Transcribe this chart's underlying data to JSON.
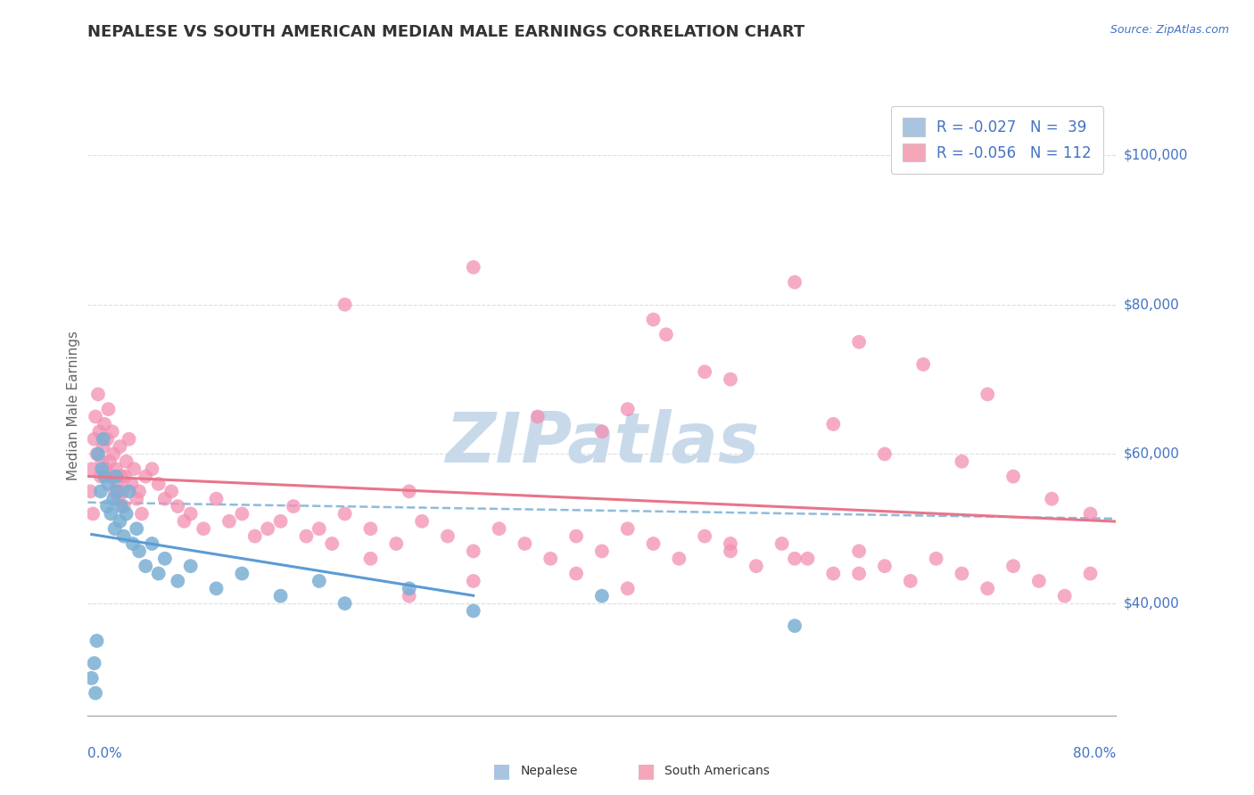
{
  "title": "NEPALESE VS SOUTH AMERICAN MEDIAN MALE EARNINGS CORRELATION CHART",
  "source_text": "Source: ZipAtlas.com",
  "ylabel": "Median Male Earnings",
  "y_tick_values": [
    40000,
    60000,
    80000,
    100000
  ],
  "xlim": [
    0.0,
    80.0
  ],
  "ylim": [
    25000,
    108000
  ],
  "nepalese_marker_color": "#7bafd4",
  "south_american_marker_color": "#f48fb1",
  "nepalese_legend_color": "#a8c4e0",
  "south_american_legend_color": "#f4a7b9",
  "title_color": "#333333",
  "axis_color": "#aaaaaa",
  "grid_color": "#dddddd",
  "right_label_color": "#4472c4",
  "watermark_color": "#c8daea",
  "trend_blue": "#5b9bd5",
  "trend_pink": "#e8758a",
  "trend_dashed": "#7bafd4",
  "nepalese_x": [
    0.3,
    0.5,
    0.6,
    0.7,
    0.8,
    1.0,
    1.1,
    1.2,
    1.3,
    1.5,
    1.6,
    1.8,
    2.0,
    2.1,
    2.2,
    2.3,
    2.5,
    2.6,
    2.8,
    3.0,
    3.2,
    3.5,
    3.8,
    4.0,
    4.5,
    5.0,
    5.5,
    6.0,
    7.0,
    8.0,
    10.0,
    12.0,
    15.0,
    18.0,
    20.0,
    25.0,
    30.0,
    40.0,
    55.0
  ],
  "nepalese_y": [
    30000,
    32000,
    28000,
    35000,
    60000,
    55000,
    58000,
    62000,
    57000,
    53000,
    56000,
    52000,
    54000,
    50000,
    57000,
    55000,
    51000,
    53000,
    49000,
    52000,
    55000,
    48000,
    50000,
    47000,
    45000,
    48000,
    44000,
    46000,
    43000,
    45000,
    42000,
    44000,
    41000,
    43000,
    40000,
    42000,
    39000,
    41000,
    37000
  ],
  "south_american_x": [
    0.2,
    0.3,
    0.4,
    0.5,
    0.6,
    0.7,
    0.8,
    0.9,
    1.0,
    1.1,
    1.2,
    1.3,
    1.4,
    1.5,
    1.6,
    1.7,
    1.8,
    1.9,
    2.0,
    2.1,
    2.2,
    2.3,
    2.4,
    2.5,
    2.6,
    2.7,
    2.8,
    2.9,
    3.0,
    3.2,
    3.4,
    3.6,
    3.8,
    4.0,
    4.2,
    4.5,
    5.0,
    5.5,
    6.0,
    6.5,
    7.0,
    7.5,
    8.0,
    9.0,
    10.0,
    11.0,
    12.0,
    13.0,
    14.0,
    15.0,
    16.0,
    17.0,
    18.0,
    19.0,
    20.0,
    22.0,
    24.0,
    26.0,
    28.0,
    30.0,
    32.0,
    34.0,
    36.0,
    38.0,
    40.0,
    42.0,
    44.0,
    46.0,
    48.0,
    50.0,
    52.0,
    54.0,
    56.0,
    58.0,
    60.0,
    62.0,
    64.0,
    66.0,
    68.0,
    70.0,
    72.0,
    74.0,
    76.0,
    78.0,
    20.0,
    30.0,
    44.0,
    55.0,
    60.0,
    65.0,
    70.0,
    45.0,
    48.0,
    35.0,
    40.0,
    42.0,
    50.0,
    58.0,
    25.0,
    62.0,
    68.0,
    72.0,
    75.0,
    78.0,
    22.0,
    38.0,
    30.0,
    25.0,
    50.0,
    55.0,
    60.0,
    42.0
  ],
  "south_american_y": [
    55000,
    58000,
    52000,
    62000,
    65000,
    60000,
    68000,
    63000,
    57000,
    59000,
    61000,
    64000,
    58000,
    62000,
    66000,
    59000,
    57000,
    63000,
    60000,
    55000,
    58000,
    56000,
    54000,
    61000,
    57000,
    55000,
    53000,
    57000,
    59000,
    62000,
    56000,
    58000,
    54000,
    55000,
    52000,
    57000,
    58000,
    56000,
    54000,
    55000,
    53000,
    51000,
    52000,
    50000,
    54000,
    51000,
    52000,
    49000,
    50000,
    51000,
    53000,
    49000,
    50000,
    48000,
    52000,
    50000,
    48000,
    51000,
    49000,
    47000,
    50000,
    48000,
    46000,
    49000,
    47000,
    50000,
    48000,
    46000,
    49000,
    47000,
    45000,
    48000,
    46000,
    44000,
    47000,
    45000,
    43000,
    46000,
    44000,
    42000,
    45000,
    43000,
    41000,
    44000,
    80000,
    85000,
    78000,
    83000,
    75000,
    72000,
    68000,
    76000,
    71000,
    65000,
    63000,
    66000,
    70000,
    64000,
    55000,
    60000,
    59000,
    57000,
    54000,
    52000,
    46000,
    44000,
    43000,
    41000,
    48000,
    46000,
    44000,
    42000
  ]
}
